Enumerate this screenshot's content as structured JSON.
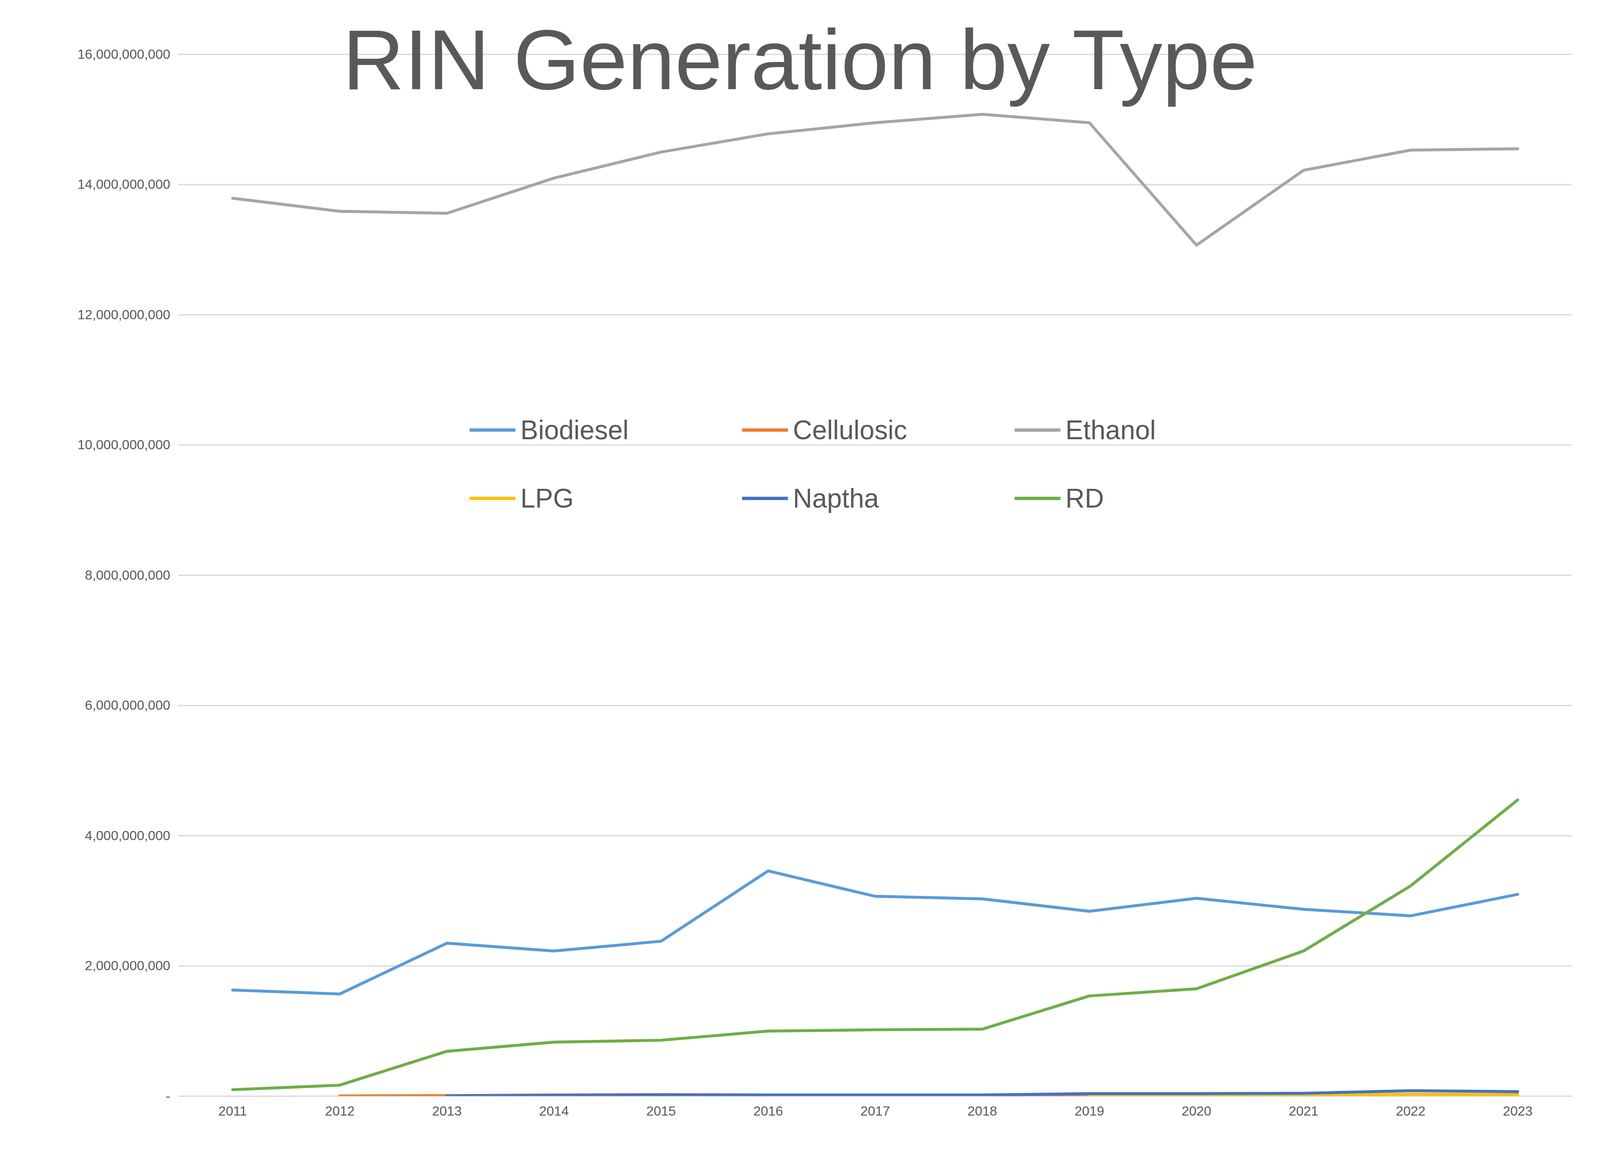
{
  "chart_data": {
    "type": "line",
    "title": "RIN Generation by Type",
    "categories": [
      "2011",
      "2012",
      "2013",
      "2014",
      "2015",
      "2016",
      "2017",
      "2018",
      "2019",
      "2020",
      "2021",
      "2022",
      "2023"
    ],
    "series": [
      {
        "name": "Biodiesel",
        "color": "#5b9bd5",
        "values": [
          1630000000,
          1570000000,
          2350000000,
          2230000000,
          2380000000,
          3460000000,
          3070000000,
          3030000000,
          2840000000,
          3040000000,
          2870000000,
          2770000000,
          3100000000
        ]
      },
      {
        "name": "Cellulosic",
        "color": "#ed7d31",
        "values": [
          null,
          5000000,
          10000000,
          20000000,
          25000000,
          20000000,
          15000000,
          15000000,
          20000000,
          20000000,
          20000000,
          30000000,
          25000000
        ]
      },
      {
        "name": "Ethanol",
        "color": "#a5a5a5",
        "values": [
          13790000000,
          13590000000,
          13560000000,
          14100000000,
          14500000000,
          14780000000,
          14950000000,
          15080000000,
          14950000000,
          13070000000,
          14220000000,
          14530000000,
          14550000000
        ]
      },
      {
        "name": "LPG",
        "color": "#ffc000",
        "values": [
          null,
          null,
          null,
          null,
          null,
          null,
          null,
          null,
          10000000,
          15000000,
          20000000,
          30000000,
          20000000
        ]
      },
      {
        "name": "Naptha",
        "color": "#4472c4",
        "values": [
          null,
          null,
          5000000,
          15000000,
          20000000,
          20000000,
          20000000,
          20000000,
          40000000,
          40000000,
          45000000,
          85000000,
          70000000
        ]
      },
      {
        "name": "RD",
        "color": "#70ad47",
        "values": [
          100000000,
          170000000,
          690000000,
          830000000,
          860000000,
          1000000000,
          1020000000,
          1030000000,
          1540000000,
          1650000000,
          2230000000,
          3230000000,
          4550000000
        ]
      }
    ],
    "ylim": [
      0,
      16000000000
    ],
    "yticks": [
      {
        "value": 0,
        "label": "-"
      },
      {
        "value": 2000000000,
        "label": "2,000,000,000"
      },
      {
        "value": 4000000000,
        "label": "4,000,000,000"
      },
      {
        "value": 6000000000,
        "label": "6,000,000,000"
      },
      {
        "value": 8000000000,
        "label": "8,000,000,000"
      },
      {
        "value": 10000000000,
        "label": "10,000,000,000"
      },
      {
        "value": 12000000000,
        "label": "12,000,000,000"
      },
      {
        "value": 14000000000,
        "label": "14,000,000,000"
      },
      {
        "value": 16000000000,
        "label": "16,000,000,000"
      }
    ],
    "grid": true,
    "legend": "center"
  }
}
